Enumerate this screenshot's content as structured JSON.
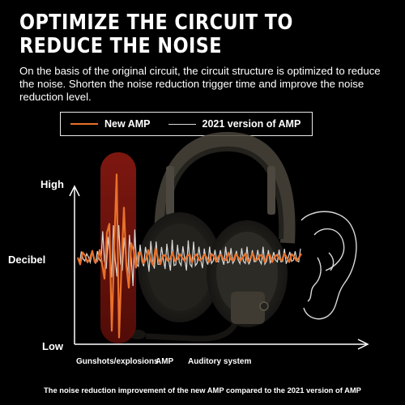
{
  "headline": {
    "line1": "OPTIMIZE THE CIRCUIT TO",
    "line2": "REDUCE THE NOISE"
  },
  "description": "On the basis of the original circuit, the circuit structure is optimized to reduce the noise. Shorten the noise reduction trigger time and improve the noise reduction level.",
  "legend": {
    "new_amp": {
      "label": "New AMP",
      "color": "#e8712a"
    },
    "old_amp": {
      "label": "2021 version of AMP",
      "color": "#d8d8d8"
    }
  },
  "axis": {
    "y_high": "High",
    "y_low": "Low",
    "y_label": "Decibel",
    "x_labels": [
      "Gunshots/explosions",
      "AMP",
      "Auditory system"
    ]
  },
  "highlight_color": "#8b1a12",
  "caption": "The noise reduction improvement of the new AMP compared to the 2021 version of AMP",
  "icons": [
    "headset-illustration-icon",
    "ear-outline-icon"
  ]
}
